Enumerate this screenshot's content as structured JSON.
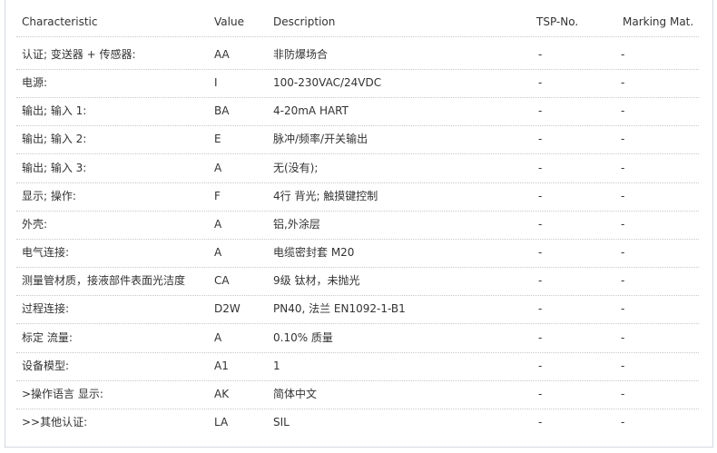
{
  "table": {
    "headers": [
      "Characteristic",
      "Value",
      "Description",
      "TSP-No.",
      "Marking Mat."
    ],
    "rows": [
      [
        "认证; 变送器 + 传感器:",
        "AA",
        "非防爆场合",
        "-",
        "-"
      ],
      [
        "电源:",
        "I",
        "100-230VAC/24VDC",
        "-",
        "-"
      ],
      [
        "输出; 输入 1:",
        "BA",
        "4-20mA HART",
        "-",
        "-"
      ],
      [
        "输出; 输入 2:",
        "E",
        "脉冲/频率/开关输出",
        "-",
        "-"
      ],
      [
        "输出; 输入 3:",
        "A",
        "无(没有);",
        "-",
        "-"
      ],
      [
        "显示; 操作:",
        "F",
        "4行 背光; 触摸键控制",
        "-",
        "-"
      ],
      [
        "外壳:",
        "A",
        "铝,外涂层",
        "-",
        "-"
      ],
      [
        "电气连接:",
        "A",
        "电缆密封套 M20",
        "-",
        "-"
      ],
      [
        "测量管材质，接液部件表面光洁度",
        "CA",
        "9级 钛材，未抛光",
        "-",
        "-"
      ],
      [
        "过程连接:",
        "D2W",
        "PN40, 法兰 EN1092-1-B1",
        "-",
        "-"
      ],
      [
        "标定 流量:",
        "A",
        "0.10% 质量",
        "-",
        "-"
      ],
      [
        "设备模型:",
        "A1",
        "1",
        "-",
        "-"
      ],
      [
        ">操作语言 显示:",
        "AK",
        "简体中文",
        "-",
        "-"
      ],
      [
        ">>其他认证:",
        "LA",
        "SIL",
        "-",
        "-"
      ]
    ]
  }
}
